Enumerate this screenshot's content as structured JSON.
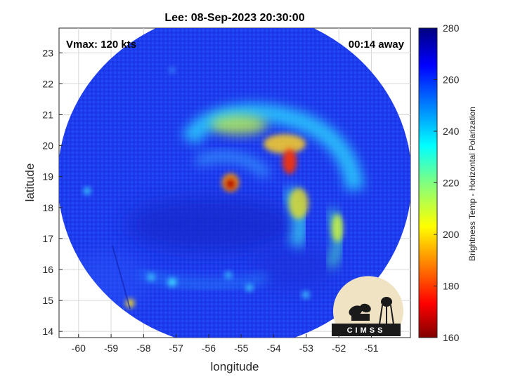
{
  "title": "Lee: 08-Sep-2023 20:30:00",
  "vmax_text": "Vmax: 120 kts",
  "time_away_text": "00:14 away",
  "logo_text": "CIMSS",
  "xlabel": "longitude",
  "ylabel": "latitude",
  "xticks": [
    "-60",
    "-59",
    "-58",
    "-57",
    "-56",
    "-55",
    "-54",
    "-53",
    "-52",
    "-51"
  ],
  "yticks": [
    "14",
    "15",
    "16",
    "17",
    "18",
    "19",
    "20",
    "21",
    "22",
    "23"
  ],
  "colorbar": {
    "label": "Brightness Temp - Horizontal Polarization",
    "ticks": [
      "160",
      "180",
      "200",
      "220",
      "240",
      "260",
      "280"
    ],
    "range": [
      160,
      280
    ],
    "colormap": "jet"
  },
  "map": {
    "xlim": [
      -60.6,
      -49.8
    ],
    "ylim": [
      13.8,
      23.8
    ],
    "swath_center": [
      -55.2,
      18.7
    ],
    "eye_center": [
      -55.4,
      18.8
    ],
    "background_temp": 265,
    "colors": {
      "cold_deep": "#7a0000",
      "warm_blue": "#1f3df0",
      "deep_blue": "#101a9c"
    }
  }
}
